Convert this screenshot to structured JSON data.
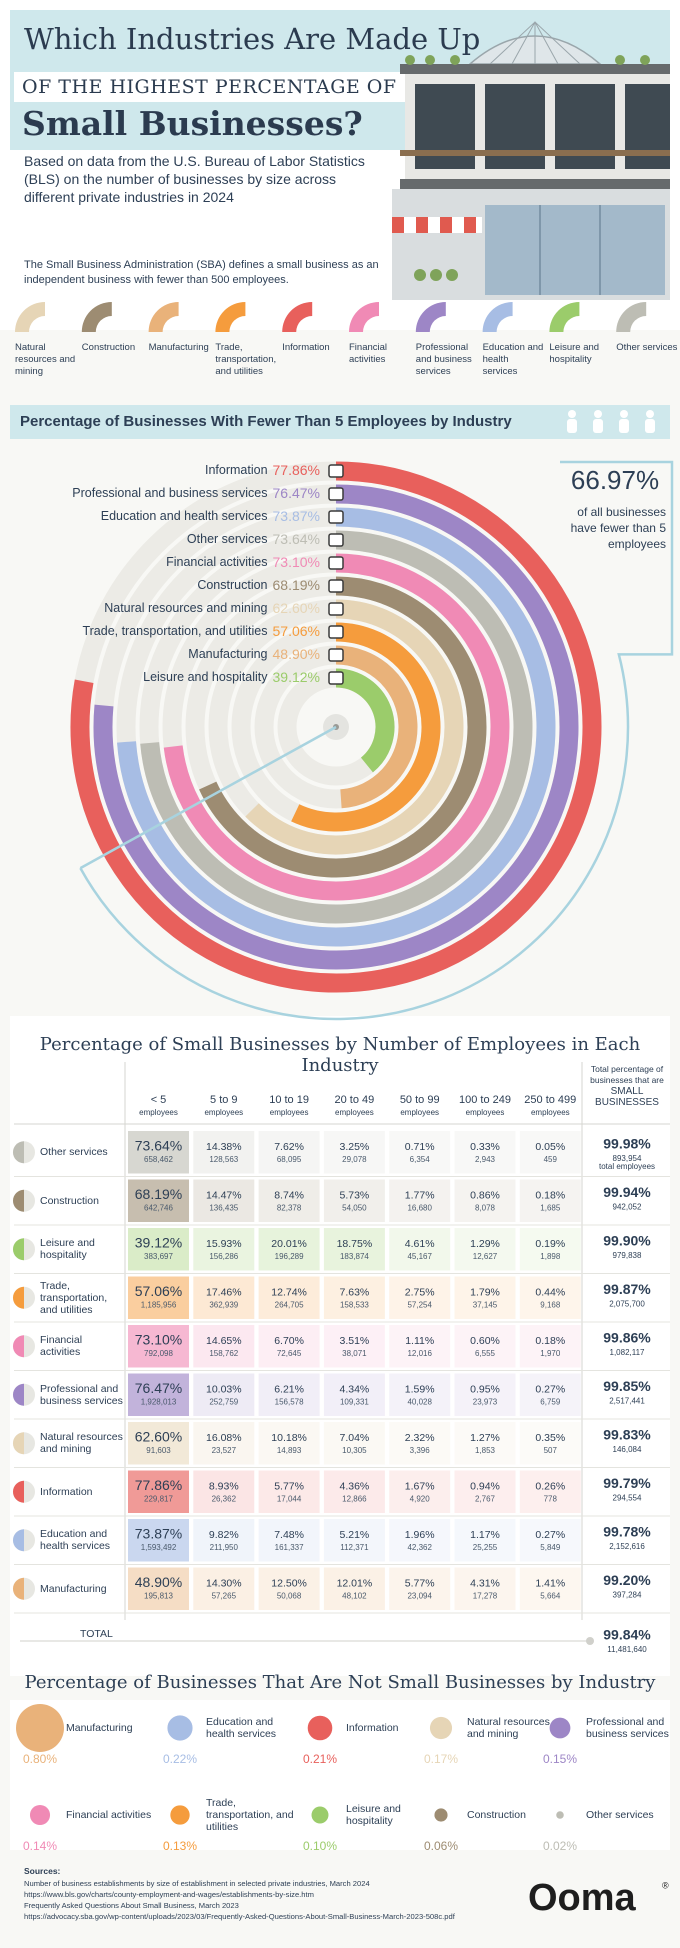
{
  "header": {
    "title_line1": "Which Industries Are Made Up",
    "title_line2": "OF THE HIGHEST PERCENTAGE OF",
    "title_line3": "Small Businesses?",
    "intro": "Based on data from the U.S. Bureau of Labor Statistics (BLS) on the number of businesses by size across different private industries in 2024",
    "note": "The Small Business Administration (SBA) defines a small business as an independent business with fewer than 500 employees."
  },
  "industries": [
    {
      "name": "Natural resources and mining",
      "color": "#e6d5b6"
    },
    {
      "name": "Construction",
      "color": "#9d8c72"
    },
    {
      "name": "Manufacturing",
      "color": "#e9b27a"
    },
    {
      "name": "Trade, transportation, and utilities",
      "color": "#f59c3d"
    },
    {
      "name": "Information",
      "color": "#e8605c"
    },
    {
      "name": "Financial activities",
      "color": "#f08ab5"
    },
    {
      "name": "Professional and business services",
      "color": "#9d86c6"
    },
    {
      "name": "Education and health services",
      "color": "#a7bde4"
    },
    {
      "name": "Leisure and hospitality",
      "color": "#9bcc6b"
    },
    {
      "name": "Other services",
      "color": "#bdbdb4"
    }
  ],
  "fewer_than_5": {
    "type": "radial-bar",
    "title": "Percentage of Businesses With Fewer Than 5 Employees by Industry",
    "categories": [
      "Information",
      "Professional and business services",
      "Education and health services",
      "Other services",
      "Financial activities",
      "Construction",
      "Natural resources and mining",
      "Trade, transportation, and utilities",
      "Manufacturing",
      "Leisure and hospitality"
    ],
    "values": [
      77.86,
      76.47,
      73.87,
      73.64,
      73.1,
      68.19,
      62.6,
      57.06,
      48.9,
      39.12
    ],
    "value_labels": [
      "77.86%",
      "76.47%",
      "73.87%",
      "73.64%",
      "73.10%",
      "68.19%",
      "62.60%",
      "57.06%",
      "48.90%",
      "39.12%"
    ],
    "lim": [
      0,
      100
    ],
    "overall": {
      "value": 66.97,
      "label": "66.97%",
      "text": "of all businesses have fewer than 5 employees"
    }
  },
  "table": {
    "title": "Percentage of Small Businesses by Number of Employees in Each Industry",
    "columns": [
      {
        "range": "< 5",
        "unit": "employees"
      },
      {
        "range": "5 to 9",
        "unit": "employees"
      },
      {
        "range": "10 to 19",
        "unit": "employees"
      },
      {
        "range": "20 to 49",
        "unit": "employees"
      },
      {
        "range": "50 to 99",
        "unit": "employees"
      },
      {
        "range": "100 to 249",
        "unit": "employees"
      },
      {
        "range": "250 to 499",
        "unit": "employees"
      }
    ],
    "total_header": {
      "text": "Total percentage of businesses that are",
      "emphasis": "SMALL BUSINESSES"
    },
    "rows": [
      {
        "name": "Other services",
        "cells": [
          [
            "73.64%",
            "658,462"
          ],
          [
            "14.38%",
            "128,563"
          ],
          [
            "7.62%",
            "68,095"
          ],
          [
            "3.25%",
            "29,078"
          ],
          [
            "0.71%",
            "6,354"
          ],
          [
            "0.33%",
            "2,943"
          ],
          [
            "0.05%",
            "459"
          ]
        ],
        "total": [
          "99.98%",
          "893,954",
          "total employees"
        ]
      },
      {
        "name": "Construction",
        "cells": [
          [
            "68.19%",
            "642,746"
          ],
          [
            "14.47%",
            "136,435"
          ],
          [
            "8.74%",
            "82,378"
          ],
          [
            "5.73%",
            "54,050"
          ],
          [
            "1.77%",
            "16,680"
          ],
          [
            "0.86%",
            "8,078"
          ],
          [
            "0.18%",
            "1,685"
          ]
        ],
        "total": [
          "99.94%",
          "942,052"
        ]
      },
      {
        "name": "Leisure and hospitality",
        "cells": [
          [
            "39.12%",
            "383,697"
          ],
          [
            "15.93%",
            "156,286"
          ],
          [
            "20.01%",
            "196,289"
          ],
          [
            "18.75%",
            "183,874"
          ],
          [
            "4.61%",
            "45,167"
          ],
          [
            "1.29%",
            "12,627"
          ],
          [
            "0.19%",
            "1,898"
          ]
        ],
        "total": [
          "99.90%",
          "979,838"
        ]
      },
      {
        "name": "Trade, transportation, and utilities",
        "cells": [
          [
            "57.06%",
            "1,185,956"
          ],
          [
            "17.46%",
            "362,939"
          ],
          [
            "12.74%",
            "264,705"
          ],
          [
            "7.63%",
            "158,533"
          ],
          [
            "2.75%",
            "57,254"
          ],
          [
            "1.79%",
            "37,145"
          ],
          [
            "0.44%",
            "9,168"
          ]
        ],
        "total": [
          "99.87%",
          "2,075,700"
        ]
      },
      {
        "name": "Financial activities",
        "cells": [
          [
            "73.10%",
            "792,098"
          ],
          [
            "14.65%",
            "158,762"
          ],
          [
            "6.70%",
            "72,645"
          ],
          [
            "3.51%",
            "38,071"
          ],
          [
            "1.11%",
            "12,016"
          ],
          [
            "0.60%",
            "6,555"
          ],
          [
            "0.18%",
            "1,970"
          ]
        ],
        "total": [
          "99.86%",
          "1,082,117"
        ]
      },
      {
        "name": "Professional and business services",
        "cells": [
          [
            "76.47%",
            "1,928,013"
          ],
          [
            "10.03%",
            "252,759"
          ],
          [
            "6.21%",
            "156,578"
          ],
          [
            "4.34%",
            "109,331"
          ],
          [
            "1.59%",
            "40,028"
          ],
          [
            "0.95%",
            "23,973"
          ],
          [
            "0.27%",
            "6,759"
          ]
        ],
        "total": [
          "99.85%",
          "2,517,441"
        ]
      },
      {
        "name": "Natural resources and mining",
        "cells": [
          [
            "62.60%",
            "91,603"
          ],
          [
            "16.08%",
            "23,527"
          ],
          [
            "10.18%",
            "14,893"
          ],
          [
            "7.04%",
            "10,305"
          ],
          [
            "2.32%",
            "3,396"
          ],
          [
            "1.27%",
            "1,853"
          ],
          [
            "0.35%",
            "507"
          ]
        ],
        "total": [
          "99.83%",
          "146,084"
        ]
      },
      {
        "name": "Information",
        "cells": [
          [
            "77.86%",
            "229,817"
          ],
          [
            "8.93%",
            "26,362"
          ],
          [
            "5.77%",
            "17,044"
          ],
          [
            "4.36%",
            "12,866"
          ],
          [
            "1.67%",
            "4,920"
          ],
          [
            "0.94%",
            "2,767"
          ],
          [
            "0.26%",
            "778"
          ]
        ],
        "total": [
          "99.79%",
          "294,554"
        ]
      },
      {
        "name": "Education and health services",
        "cells": [
          [
            "73.87%",
            "1,593,492"
          ],
          [
            "9.82%",
            "211,950"
          ],
          [
            "7.48%",
            "161,337"
          ],
          [
            "5.21%",
            "112,371"
          ],
          [
            "1.96%",
            "42,362"
          ],
          [
            "1.17%",
            "25,255"
          ],
          [
            "0.27%",
            "5,849"
          ]
        ],
        "total": [
          "99.78%",
          "2,152,616"
        ]
      },
      {
        "name": "Manufacturing",
        "cells": [
          [
            "48.90%",
            "195,813"
          ],
          [
            "14.30%",
            "57,265"
          ],
          [
            "12.50%",
            "50,068"
          ],
          [
            "12.01%",
            "48,102"
          ],
          [
            "5.77%",
            "23,094"
          ],
          [
            "4.31%",
            "17,278"
          ],
          [
            "1.41%",
            "5,664"
          ]
        ],
        "total": [
          "99.20%",
          "397,284"
        ]
      }
    ],
    "total_row": {
      "label": "TOTAL",
      "percent": "99.84%",
      "count": "11,481,640"
    }
  },
  "not_small": {
    "type": "bubble",
    "title": "Percentage of Businesses That Are Not Small Businesses by Industry",
    "categories": [
      "Manufacturing",
      "Education and health services",
      "Information",
      "Natural resources and mining",
      "Professional and business services",
      "Financial activities",
      "Trade, transportation, and utilities",
      "Leisure and hospitality",
      "Construction",
      "Other services"
    ],
    "values": [
      0.8,
      0.22,
      0.21,
      0.17,
      0.15,
      0.14,
      0.13,
      0.1,
      0.06,
      0.02
    ],
    "value_labels": [
      "0.80%",
      "0.22%",
      "0.21%",
      "0.17%",
      "0.15%",
      "0.14%",
      "0.13%",
      "0.10%",
      "0.06%",
      "0.02%"
    ]
  },
  "sources": {
    "heading": "Sources:",
    "lines": [
      "Number of business establishments by size of establishment in selected private industries, March 2024",
      "https://www.bls.gov/charts/county-employment-and-wages/establishments-by-size.htm",
      "Frequently Asked Questions About Small Business, March 2023",
      "https://advocacy.sba.gov/wp-content/uploads/2023/03/Frequently-Asked-Questions-About-Small-Business-March-2023-508c.pdf"
    ]
  },
  "logo": {
    "text": "Ooma",
    "mark": "®"
  }
}
